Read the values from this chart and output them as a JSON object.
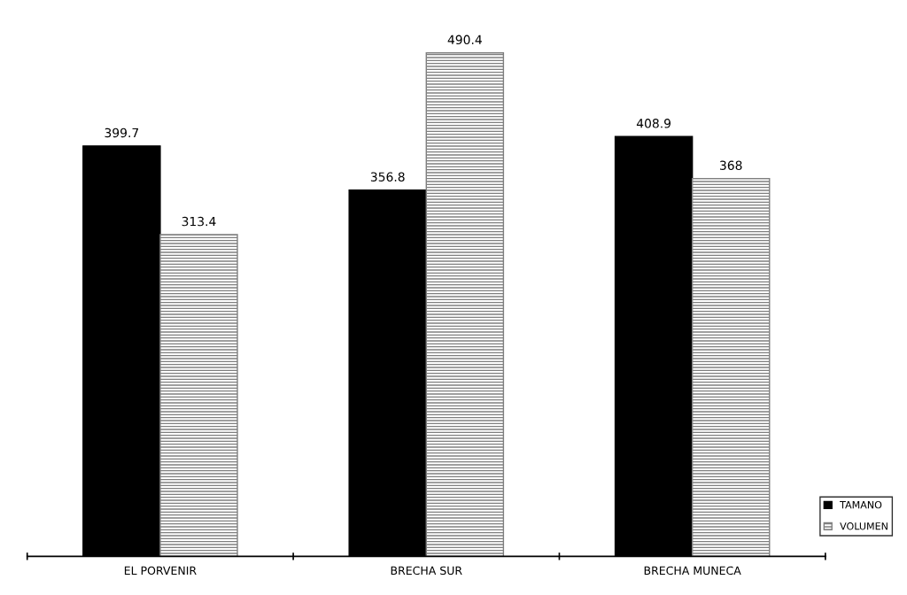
{
  "chart_data": {
    "type": "bar",
    "categories": [
      "EL PORVENIR",
      "BRECHA SUR",
      "BRECHA MUNECA"
    ],
    "series": [
      {
        "name": "TAMANO",
        "color": "#000000",
        "values": [
          399.7,
          356.8,
          408.9
        ]
      },
      {
        "name": "VOLUMEN",
        "color": "#7f7f7f",
        "values": [
          313.4,
          490.4,
          368
        ]
      }
    ],
    "data_labels": true,
    "legend": "bottom right",
    "grid": false
  }
}
